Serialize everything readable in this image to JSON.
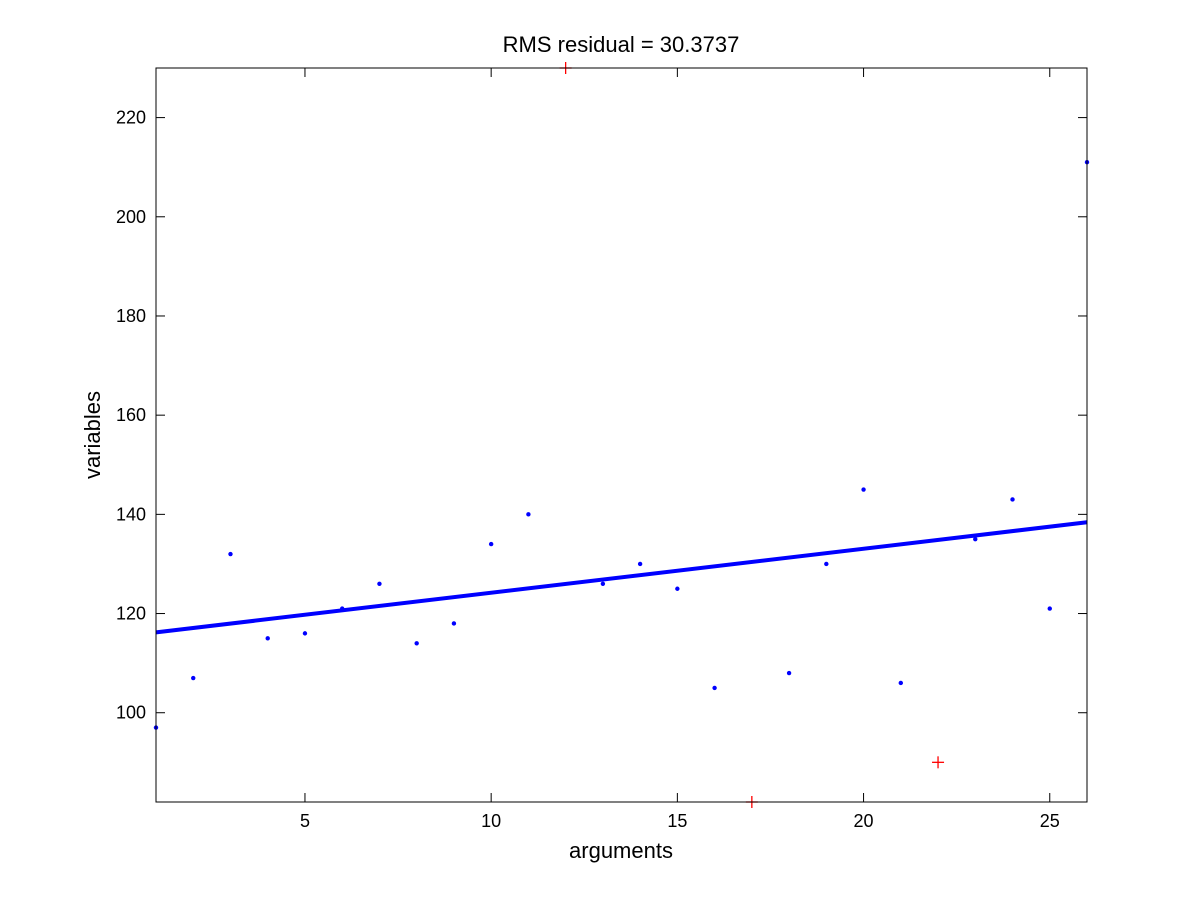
{
  "chart_data": {
    "type": "scatter",
    "title": "RMS residual = 30.3737",
    "xlabel": "arguments",
    "ylabel": "variables",
    "xlim": [
      1,
      26
    ],
    "ylim": [
      82,
      230
    ],
    "xticks": [
      5,
      10,
      15,
      20,
      25
    ],
    "yticks": [
      100,
      120,
      140,
      160,
      180,
      200,
      220
    ],
    "grid": false,
    "series": [
      {
        "role": "points",
        "marker": "dot",
        "color": "#0000ff",
        "x": [
          1,
          2,
          3,
          4,
          5,
          6,
          7,
          8,
          9,
          10,
          11,
          13,
          14,
          15,
          16,
          18,
          19,
          20,
          21,
          23,
          24,
          25,
          26
        ],
        "y": [
          97,
          107,
          132,
          115,
          116,
          121,
          126,
          114,
          118,
          134,
          140,
          126,
          130,
          125,
          105,
          108,
          130,
          145,
          106,
          135,
          143,
          121,
          211
        ]
      },
      {
        "role": "outliers",
        "marker": "plus",
        "color": "#ff0000",
        "x": [
          12,
          17,
          22
        ],
        "y": [
          230,
          82,
          90
        ]
      },
      {
        "role": "fit",
        "marker": "line",
        "color": "#0000ff",
        "x": [
          1,
          26
        ],
        "y": [
          116.2,
          138.4
        ]
      }
    ]
  }
}
